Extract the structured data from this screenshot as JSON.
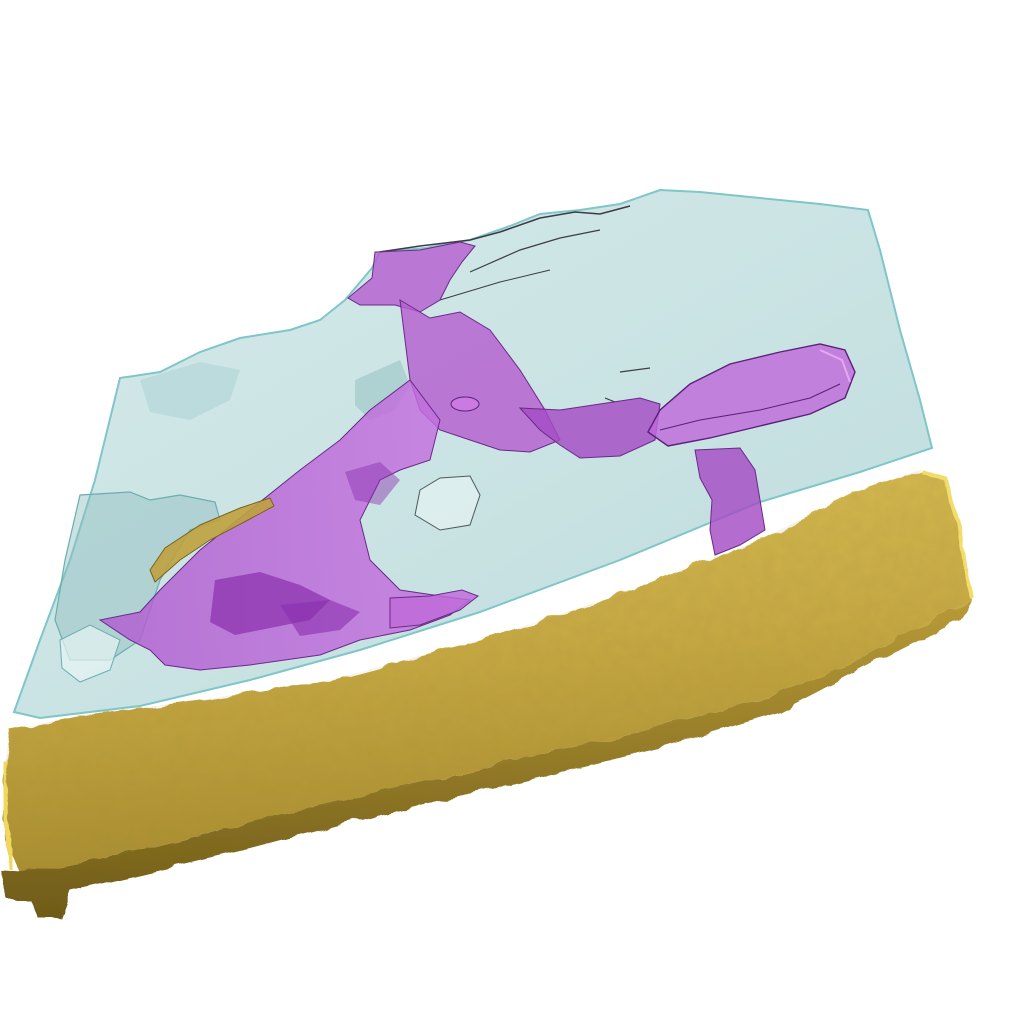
{
  "scene": {
    "background": "#ffffff",
    "colors": {
      "membrane": "#b7dcdc",
      "membrane_edge": "#7fc6c8",
      "membrane_shadow": "#8fbdbf",
      "structure": "#b45fcf",
      "structure_dark": "#8a2fae",
      "structure_light": "#d07be8",
      "slab": "#c9ac45",
      "slab_dark": "#8c7423",
      "slab_light": "#e6cf63",
      "outline": "#3c3c44"
    },
    "objects": [
      "translucent-membrane-sheet",
      "purple-branched-structure",
      "gold-slab",
      "small-gold-fragment"
    ]
  }
}
